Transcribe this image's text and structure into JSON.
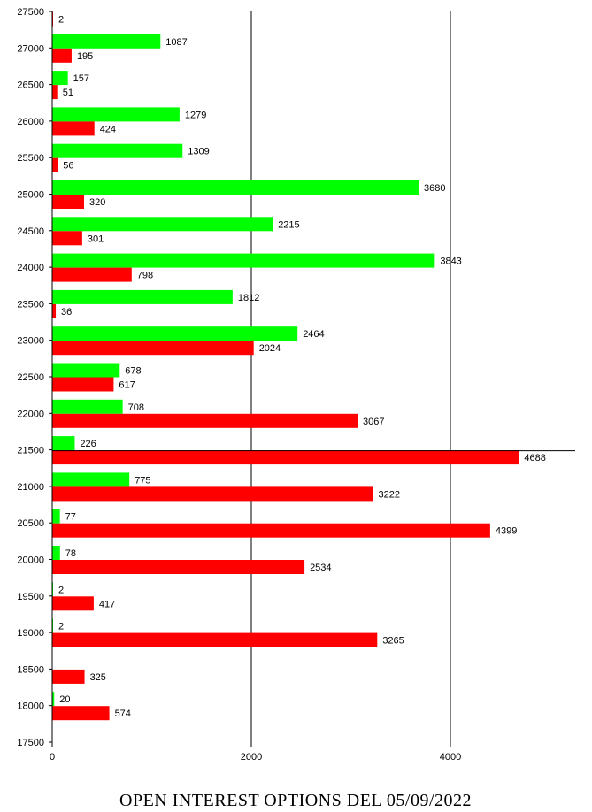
{
  "chart_data": {
    "type": "bar",
    "orientation": "horizontal",
    "title": "OPEN INTEREST OPTIONS DEL 05/09/2022",
    "categories": [
      "27500",
      "27000",
      "26500",
      "26000",
      "25500",
      "25000",
      "24500",
      "24000",
      "23500",
      "23000",
      "22500",
      "22000",
      "21500",
      "21000",
      "20500",
      "20000",
      "19500",
      "19000",
      "18500",
      "18000",
      "17500"
    ],
    "series": [
      {
        "color": "#00ff00",
        "values": [
          null,
          1087,
          157,
          1279,
          1309,
          3680,
          2215,
          3843,
          1812,
          2464,
          678,
          708,
          226,
          775,
          77,
          78,
          2,
          2,
          null,
          20,
          null
        ]
      },
      {
        "color": "#ff0000",
        "values": [
          2,
          195,
          51,
          424,
          56,
          320,
          301,
          798,
          36,
          2024,
          617,
          3067,
          4688,
          3222,
          4399,
          2534,
          417,
          3265,
          325,
          574,
          null
        ]
      }
    ],
    "xlim": [
      0,
      5200
    ],
    "xticks": [
      "0",
      "2000",
      "4000"
    ],
    "gridlines_x": [
      2000,
      4000
    ],
    "highlight_category": "21500",
    "grid": true,
    "legend": "none"
  }
}
